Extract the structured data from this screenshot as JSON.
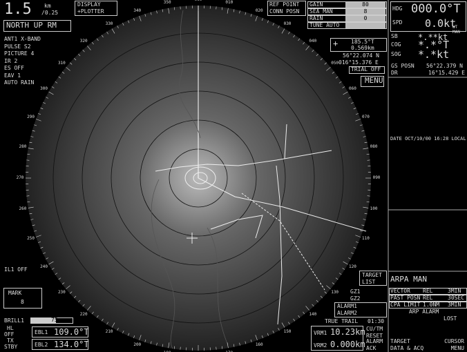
{
  "range": {
    "value": "1.5",
    "unit": "km",
    "ring": "/0.25"
  },
  "display": {
    "label": "DISPLAY",
    "mode": "+PLOTTER"
  },
  "orientation": "NORTH UP RM",
  "settings": [
    "ANT1  X-BAND",
    "PULSE S2",
    "PICTURE 4",
    "IR  2",
    "ES  OFF",
    "EAV 1",
    "AUTO RAIN"
  ],
  "ref": {
    "line1": "REF POINT",
    "line2": "CONN POSN"
  },
  "controls": [
    {
      "name": "GAIN",
      "value": "80"
    },
    {
      "name": "SEA  MAN",
      "value": "8"
    },
    {
      "name": "RAIN",
      "value": "0"
    },
    {
      "name": "TUNE AUTO",
      "value": ""
    }
  ],
  "nav": {
    "hdg_label": "HDG",
    "hdg": "000.0°T",
    "spd_label": "SPD",
    "spd": "0.0kt",
    "spd_mode": "WT MAN",
    "sb_label": "SB",
    "sb": "*.**kt",
    "cog_label": "COG",
    "cog": "*.*°T",
    "sog_label": "SOG",
    "sog": "*.*kt",
    "pos_label": "GS POSN",
    "lat": "56°22.379 N",
    "dr_label": "DR",
    "lon": "16°15.429 E"
  },
  "cursor": {
    "bearing": "185.5°T",
    "range": "0.569km",
    "lat": "56°22.074 N",
    "lon": "016°15.376 E",
    "trial": "TRIAL OFF",
    "menu": "MENU"
  },
  "date": "DATE OCT/10/00 16:28 LOCAL",
  "bearing_labels": [
    "000",
    "010",
    "020",
    "030",
    "040",
    "050",
    "060",
    "070",
    "080",
    "090",
    "100",
    "110",
    "120",
    "130",
    "140",
    "150",
    "160",
    "170",
    "180",
    "190",
    "200",
    "210",
    "220",
    "230",
    "240",
    "250",
    "260",
    "270",
    "280",
    "290",
    "300",
    "310",
    "320",
    "330",
    "340",
    "350"
  ],
  "left": {
    "il": "IL1 OFF",
    "mark": "MARK",
    "mark_value": "8",
    "brill": "BRILL1",
    "brill_value": "75",
    "hl": "HL",
    "hl2": "OFF",
    "ebl1": "EBL1",
    "ebl1_value": "109.0°T",
    "tx": "TX",
    "tx2": "STBY",
    "ebl2": "EBL2",
    "ebl2_value": "134.0°T"
  },
  "bottom": {
    "target_list": "TARGET LIST",
    "gz1": "GZ1",
    "gz2": "GZ2",
    "alarm1": "ALARM1",
    "alarm2": "ALARM2",
    "trail": "TRUE TRAIL",
    "trail_time": "01:30",
    "vrm1": "VRM1",
    "vrm1_value": "10.23km",
    "vrm2": "VRM2",
    "vrm2_value": "0.000km",
    "reset": "CU/TM RESET",
    "ack": "ALARM ACK",
    "tdata": "TARGET DATA & ACQ",
    "cmenu": "CURSOR MENU"
  },
  "arpa": {
    "title": "ARPA MAN",
    "rows": [
      [
        "VECTOR",
        "REL",
        "3MIN"
      ],
      [
        "PAST POSN",
        "REL",
        "30SEC"
      ],
      [
        "CPA LIMIT",
        "1.0NM",
        "3MIN"
      ]
    ],
    "alarm": "ARP ALARM",
    "lost": "LOST"
  }
}
